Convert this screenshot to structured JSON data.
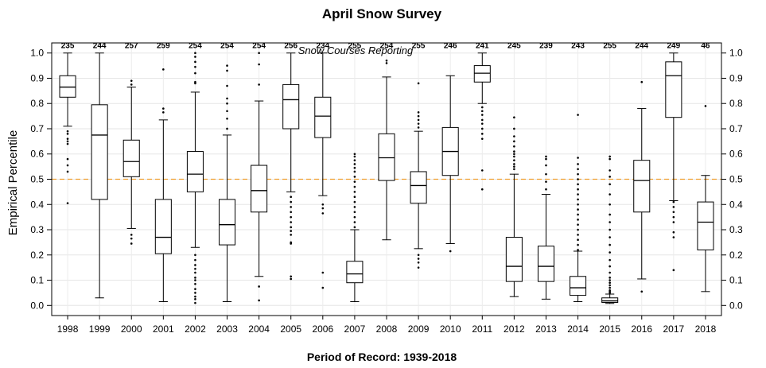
{
  "chart_data": {
    "type": "boxplot",
    "title": "April Snow Survey",
    "xlabel": "Period of Record: 1939-2018",
    "ylabel": "Empirical Percentile",
    "annotation": "Snow Courses Reporting",
    "ylim": [
      -0.04,
      1.04
    ],
    "y_ticks": [
      "0.0",
      "0.1",
      "0.2",
      "0.3",
      "0.4",
      "0.5",
      "0.6",
      "0.7",
      "0.8",
      "0.9",
      "1.0"
    ],
    "reference_line": 0.5,
    "reference_color": "#f0a030",
    "grid": true,
    "categories": [
      "1998",
      "1999",
      "2000",
      "2001",
      "2002",
      "2003",
      "2004",
      "2005",
      "2006",
      "2007",
      "2008",
      "2009",
      "2010",
      "2011",
      "2012",
      "2013",
      "2014",
      "2015",
      "2016",
      "2017",
      "2018"
    ],
    "counts": [
      "235",
      "244",
      "257",
      "259",
      "254",
      "254",
      "254",
      "256",
      "234",
      "255",
      "254",
      "255",
      "246",
      "241",
      "245",
      "239",
      "243",
      "255",
      "244",
      "249",
      "46"
    ],
    "boxes": [
      {
        "whisker_low": 0.71,
        "q1": 0.825,
        "median": 0.865,
        "q3": 0.91,
        "whisker_high": 1.0,
        "outliers": [
          0.69,
          0.68,
          0.66,
          0.65,
          0.64,
          0.58,
          0.555,
          0.53,
          0.405
        ]
      },
      {
        "whisker_low": 0.03,
        "q1": 0.42,
        "median": 0.675,
        "q3": 0.795,
        "whisker_high": 1.0,
        "outliers": []
      },
      {
        "whisker_low": 0.305,
        "q1": 0.51,
        "median": 0.57,
        "q3": 0.655,
        "whisker_high": 0.865,
        "outliers": [
          0.89,
          0.875,
          0.28,
          0.265,
          0.245
        ]
      },
      {
        "whisker_low": 0.015,
        "q1": 0.205,
        "median": 0.27,
        "q3": 0.42,
        "whisker_high": 0.735,
        "outliers": [
          0.935,
          0.78,
          0.765
        ]
      },
      {
        "whisker_low": 0.23,
        "q1": 0.45,
        "median": 0.52,
        "q3": 0.61,
        "whisker_high": 0.845,
        "outliers": [
          1.0,
          0.985,
          0.965,
          0.945,
          0.92,
          0.885,
          0.88,
          0.2,
          0.18,
          0.16,
          0.145,
          0.13,
          0.11,
          0.1,
          0.085,
          0.065,
          0.05,
          0.035,
          0.025,
          0.01
        ]
      },
      {
        "whisker_low": 0.015,
        "q1": 0.24,
        "median": 0.32,
        "q3": 0.42,
        "whisker_high": 0.675,
        "outliers": [
          0.95,
          0.93,
          0.87,
          0.82,
          0.8,
          0.77,
          0.74,
          0.7
        ]
      },
      {
        "whisker_low": 0.115,
        "q1": 0.37,
        "median": 0.455,
        "q3": 0.555,
        "whisker_high": 0.81,
        "outliers": [
          1.0,
          0.955,
          0.875,
          0.075,
          0.02
        ]
      },
      {
        "whisker_low": 0.45,
        "q1": 0.7,
        "median": 0.815,
        "q3": 0.875,
        "whisker_high": 1.0,
        "outliers": [
          0.43,
          0.41,
          0.39,
          0.37,
          0.35,
          0.33,
          0.31,
          0.295,
          0.28,
          0.25,
          0.245,
          0.115,
          0.105
        ]
      },
      {
        "whisker_low": 0.435,
        "q1": 0.665,
        "median": 0.75,
        "q3": 0.825,
        "whisker_high": 1.0,
        "outliers": [
          0.4,
          0.385,
          0.365,
          0.13,
          0.07
        ]
      },
      {
        "whisker_low": 0.015,
        "q1": 0.09,
        "median": 0.125,
        "q3": 0.175,
        "whisker_high": 0.3,
        "outliers": [
          0.59,
          0.575,
          0.56,
          0.545,
          0.53,
          0.51,
          0.49,
          0.47,
          0.45,
          0.43,
          0.41,
          0.39,
          0.37,
          0.35,
          0.33,
          0.31,
          0.6
        ]
      },
      {
        "whisker_low": 0.26,
        "q1": 0.495,
        "median": 0.585,
        "q3": 0.68,
        "whisker_high": 0.905,
        "outliers": [
          0.97,
          0.96
        ]
      },
      {
        "whisker_low": 0.225,
        "q1": 0.405,
        "median": 0.475,
        "q3": 0.53,
        "whisker_high": 0.69,
        "outliers": [
          0.88,
          0.765,
          0.75,
          0.735,
          0.72,
          0.705,
          0.2,
          0.185,
          0.17,
          0.15
        ]
      },
      {
        "whisker_low": 0.245,
        "q1": 0.515,
        "median": 0.61,
        "q3": 0.705,
        "whisker_high": 0.91,
        "outliers": [
          0.215
        ]
      },
      {
        "whisker_low": 0.8,
        "q1": 0.885,
        "median": 0.92,
        "q3": 0.95,
        "whisker_high": 1.0,
        "outliers": [
          0.785,
          0.77,
          0.755,
          0.735,
          0.72,
          0.7,
          0.68,
          0.66,
          0.535,
          0.46
        ]
      },
      {
        "whisker_low": 0.035,
        "q1": 0.095,
        "median": 0.155,
        "q3": 0.27,
        "whisker_high": 0.52,
        "outliers": [
          0.745,
          0.7,
          0.67,
          0.65,
          0.63,
          0.61,
          0.6,
          0.59,
          0.575,
          0.56,
          0.55,
          0.54
        ]
      },
      {
        "whisker_low": 0.025,
        "q1": 0.095,
        "median": 0.155,
        "q3": 0.235,
        "whisker_high": 0.44,
        "outliers": [
          0.59,
          0.58,
          0.555,
          0.52,
          0.49,
          0.46
        ]
      },
      {
        "whisker_low": 0.015,
        "q1": 0.04,
        "median": 0.07,
        "q3": 0.115,
        "whisker_high": 0.215,
        "outliers": [
          0.755,
          0.585,
          0.56,
          0.54,
          0.52,
          0.5,
          0.48,
          0.46,
          0.44,
          0.42,
          0.4,
          0.38,
          0.36,
          0.34,
          0.32,
          0.3,
          0.28,
          0.26,
          0.24,
          0.22
        ]
      },
      {
        "whisker_low": 0.008,
        "q1": 0.012,
        "median": 0.018,
        "q3": 0.03,
        "whisker_high": 0.045,
        "outliers": [
          0.59,
          0.58,
          0.535,
          0.51,
          0.48,
          0.44,
          0.4,
          0.36,
          0.33,
          0.3,
          0.27,
          0.24,
          0.21,
          0.18,
          0.155,
          0.13,
          0.11,
          0.1,
          0.09,
          0.08,
          0.07,
          0.06,
          0.055,
          0.05
        ]
      },
      {
        "whisker_low": 0.105,
        "q1": 0.37,
        "median": 0.495,
        "q3": 0.575,
        "whisker_high": 0.78,
        "outliers": [
          0.885,
          0.055
        ]
      },
      {
        "whisker_low": 0.415,
        "q1": 0.745,
        "median": 0.91,
        "q3": 0.965,
        "whisker_high": 1.0,
        "outliers": [
          0.41,
          0.39,
          0.37,
          0.35,
          0.33,
          0.29,
          0.27,
          0.14
        ]
      },
      {
        "whisker_low": 0.055,
        "q1": 0.22,
        "median": 0.33,
        "q3": 0.41,
        "whisker_high": 0.515,
        "outliers": [
          0.79
        ]
      }
    ]
  }
}
